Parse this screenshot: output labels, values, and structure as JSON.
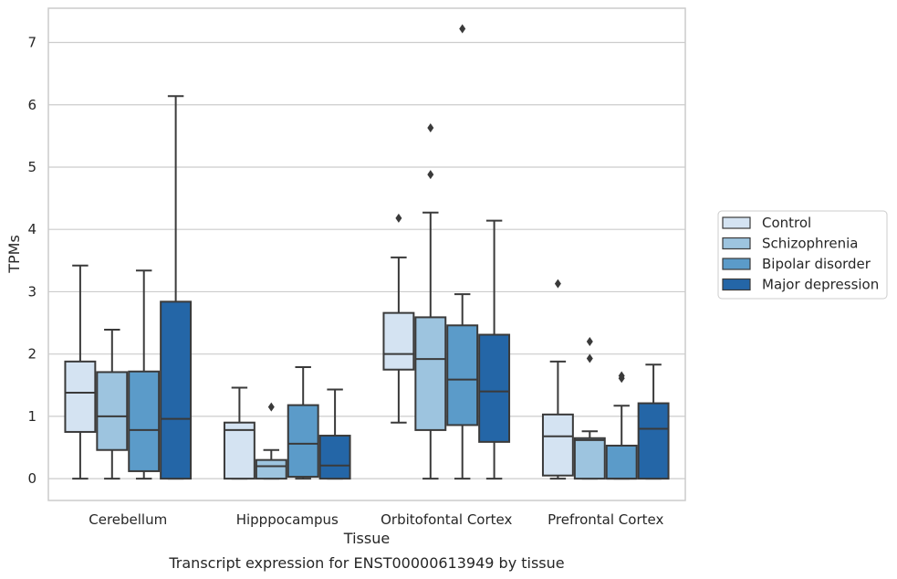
{
  "chart_data": {
    "type": "box",
    "xlabel": "Tissue",
    "ylabel": "TPMs",
    "caption": "Transcript expression for ENST00000613949 by tissue",
    "ylim": [
      -0.35,
      7.55
    ],
    "yticks": [
      0,
      1,
      2,
      3,
      4,
      5,
      6,
      7
    ],
    "grid": "horizontal",
    "legend_position": "right",
    "categories": [
      "Cerebellum",
      "Hipppocampus",
      "Orbitofontal Cortex",
      "Prefrontal Cortex"
    ],
    "series": [
      {
        "name": "Control",
        "color": "#d4e3f2",
        "boxes": [
          {
            "min": 0.0,
            "q1": 0.75,
            "median": 1.38,
            "q3": 1.88,
            "max": 3.42,
            "outliers": []
          },
          {
            "min": 0.0,
            "q1": 0.0,
            "median": 0.78,
            "q3": 0.9,
            "max": 1.46,
            "outliers": []
          },
          {
            "min": 0.9,
            "q1": 1.75,
            "median": 2.0,
            "q3": 2.66,
            "max": 3.55,
            "outliers": [
              4.18
            ]
          },
          {
            "min": 0.0,
            "q1": 0.05,
            "median": 0.68,
            "q3": 1.03,
            "max": 1.88,
            "outliers": [
              3.13
            ]
          }
        ]
      },
      {
        "name": "Schizophrenia",
        "color": "#9dc4df",
        "boxes": [
          {
            "min": 0.0,
            "q1": 0.46,
            "median": 1.0,
            "q3": 1.71,
            "max": 2.39,
            "outliers": []
          },
          {
            "min": 0.0,
            "q1": 0.0,
            "median": 0.2,
            "q3": 0.3,
            "max": 0.46,
            "outliers": [
              1.15
            ]
          },
          {
            "min": 0.0,
            "q1": 0.78,
            "median": 1.92,
            "q3": 2.59,
            "max": 4.27,
            "outliers": [
              5.63,
              4.88
            ]
          },
          {
            "min": 0.0,
            "q1": 0.0,
            "median": 0.62,
            "q3": 0.65,
            "max": 0.76,
            "outliers": [
              2.2,
              1.93
            ]
          }
        ]
      },
      {
        "name": "Bipolar disorder",
        "color": "#5b9bc9",
        "boxes": [
          {
            "min": 0.0,
            "q1": 0.12,
            "median": 0.78,
            "q3": 1.72,
            "max": 3.34,
            "outliers": []
          },
          {
            "min": 0.0,
            "q1": 0.03,
            "median": 0.56,
            "q3": 1.18,
            "max": 1.79,
            "outliers": []
          },
          {
            "min": 0.0,
            "q1": 0.86,
            "median": 1.59,
            "q3": 2.46,
            "max": 2.96,
            "outliers": [
              7.22
            ]
          },
          {
            "min": 0.0,
            "q1": 0.0,
            "median": 0.0,
            "q3": 0.53,
            "max": 1.17,
            "outliers": [
              1.65,
              1.61
            ]
          }
        ]
      },
      {
        "name": "Major depression",
        "color": "#2466a7",
        "boxes": [
          {
            "min": 0.0,
            "q1": 0.0,
            "median": 0.96,
            "q3": 2.84,
            "max": 6.14,
            "outliers": []
          },
          {
            "min": 0.0,
            "q1": 0.0,
            "median": 0.21,
            "q3": 0.69,
            "max": 1.43,
            "outliers": []
          },
          {
            "min": 0.0,
            "q1": 0.59,
            "median": 1.4,
            "q3": 2.31,
            "max": 4.14,
            "outliers": []
          },
          {
            "min": 0.0,
            "q1": 0.0,
            "median": 0.8,
            "q3": 1.21,
            "max": 1.83,
            "outliers": []
          }
        ]
      }
    ]
  }
}
